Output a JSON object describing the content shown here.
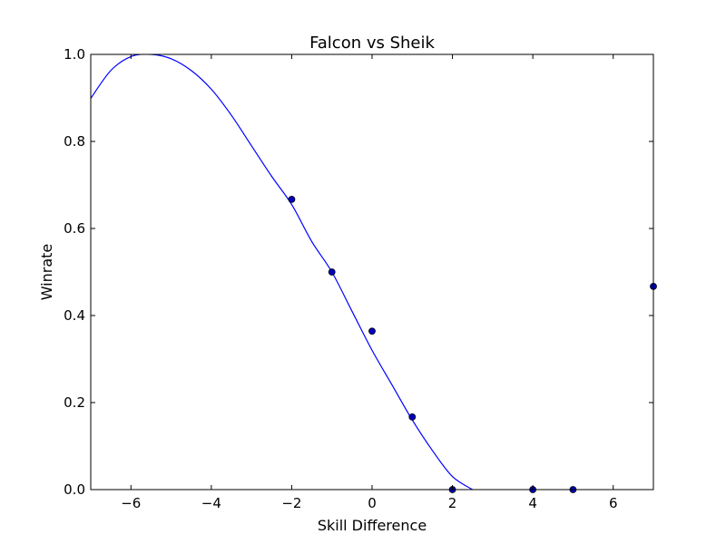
{
  "chart_data": {
    "type": "scatter",
    "title": "Falcon vs Sheik",
    "xlabel": "Skill Difference",
    "ylabel": "Winrate",
    "xlim": [
      -7,
      7
    ],
    "ylim": [
      0.0,
      1.0
    ],
    "xticks": [
      -6,
      -4,
      -2,
      0,
      2,
      4,
      6
    ],
    "xtick_labels": [
      "−6",
      "−4",
      "−2",
      "0",
      "2",
      "4",
      "6"
    ],
    "yticks": [
      0.0,
      0.2,
      0.4,
      0.6,
      0.8,
      1.0
    ],
    "ytick_labels": [
      "0.0",
      "0.2",
      "0.4",
      "0.6",
      "0.8",
      "1.0"
    ],
    "grid": false,
    "points": {
      "x": [
        -2,
        -1,
        0,
        1,
        2,
        4,
        5,
        7
      ],
      "y": [
        0.667,
        0.5,
        0.364,
        0.167,
        0.0,
        0.0,
        0.0,
        0.467
      ],
      "color": "#0000bf"
    },
    "fit_curve": {
      "x": [
        -7.0,
        -6.5,
        -6.0,
        -5.5,
        -5.0,
        -4.5,
        -4.0,
        -3.5,
        -3.0,
        -2.5,
        -2.0,
        -1.5,
        -1.0,
        -0.5,
        0.0,
        0.5,
        1.0,
        1.5,
        2.0,
        2.5
      ],
      "y": [
        0.899,
        0.963,
        0.995,
        1.0,
        0.99,
        0.963,
        0.92,
        0.86,
        0.79,
        0.72,
        0.655,
        0.57,
        0.5,
        0.41,
        0.32,
        0.24,
        0.16,
        0.09,
        0.03,
        0.0
      ],
      "color": "#0000ff"
    }
  }
}
